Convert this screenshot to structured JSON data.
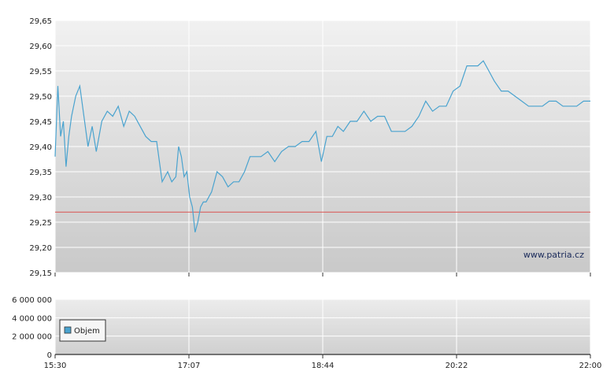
{
  "chart_data": [
    {
      "type": "line",
      "title": "",
      "xlabel": "",
      "ylabel": "",
      "watermark": "www.patria.cz",
      "x_tick_labels": [
        "15:30",
        "17:07",
        "18:44",
        "20:22",
        "22:00"
      ],
      "y_tick_labels": [
        "29,65",
        "29,60",
        "29,55",
        "29,50",
        "29,45",
        "29,40",
        "29,35",
        "29,30",
        "29,25",
        "29,20",
        "29,15"
      ],
      "ylim": [
        29.15,
        29.65
      ],
      "xlim": [
        "15:30",
        "22:00"
      ],
      "reference_line": {
        "value": 29.27,
        "color": "#d9534f"
      },
      "grid": true,
      "colors": {
        "line": "#4aa3cf",
        "plot_bg_top": "#f0f0f0",
        "plot_bg_bottom": "#c8c8c8",
        "grid": "#ffffff"
      },
      "series": [
        {
          "x": [
            "15:30",
            "15:32",
            "15:34",
            "15:36",
            "15:38",
            "15:40",
            "15:42",
            "15:45",
            "15:48",
            "15:51",
            "15:54",
            "15:57",
            "16:00",
            "16:04",
            "16:08",
            "16:12",
            "16:16",
            "16:20",
            "16:24",
            "16:28",
            "16:32",
            "16:36",
            "16:40",
            "16:44",
            "16:48",
            "16:52",
            "16:55",
            "16:58",
            "17:00",
            "17:02",
            "17:04",
            "17:06",
            "17:08",
            "17:10",
            "17:12",
            "17:14",
            "17:16",
            "17:18",
            "17:20",
            "17:24",
            "17:28",
            "17:32",
            "17:36",
            "17:40",
            "17:44",
            "17:48",
            "17:52",
            "17:56",
            "18:00",
            "18:05",
            "18:10",
            "18:15",
            "18:20",
            "18:25",
            "18:30",
            "18:35",
            "18:40",
            "18:44",
            "18:48",
            "18:52",
            "18:56",
            "19:00",
            "19:05",
            "19:10",
            "19:15",
            "19:20",
            "19:25",
            "19:30",
            "19:35",
            "19:40",
            "19:45",
            "19:50",
            "19:55",
            "20:00",
            "20:05",
            "20:10",
            "20:15",
            "20:20",
            "20:25",
            "20:30",
            "20:34",
            "20:38",
            "20:42",
            "20:46",
            "20:50",
            "20:55",
            "21:00",
            "21:05",
            "21:10",
            "21:15",
            "21:20",
            "21:25",
            "21:30",
            "21:35",
            "21:40",
            "21:45",
            "21:50",
            "21:55",
            "22:00"
          ],
          "values": [
            29.38,
            29.52,
            29.42,
            29.45,
            29.36,
            29.42,
            29.46,
            29.5,
            29.52,
            29.46,
            29.4,
            29.44,
            29.39,
            29.45,
            29.47,
            29.46,
            29.48,
            29.44,
            29.47,
            29.46,
            29.44,
            29.42,
            29.41,
            29.41,
            29.33,
            29.35,
            29.33,
            29.34,
            29.4,
            29.38,
            29.34,
            29.35,
            29.3,
            29.28,
            29.23,
            29.25,
            29.28,
            29.29,
            29.29,
            29.31,
            29.35,
            29.34,
            29.32,
            29.33,
            29.33,
            29.35,
            29.38,
            29.38,
            29.38,
            29.39,
            29.37,
            29.39,
            29.4,
            29.4,
            29.41,
            29.41,
            29.43,
            29.37,
            29.42,
            29.42,
            29.44,
            29.43,
            29.45,
            29.45,
            29.47,
            29.45,
            29.46,
            29.46,
            29.43,
            29.43,
            29.43,
            29.44,
            29.46,
            29.49,
            29.47,
            29.48,
            29.48,
            29.51,
            29.52,
            29.56,
            29.56,
            29.56,
            29.57,
            29.55,
            29.53,
            29.51,
            29.51,
            29.5,
            29.49,
            29.48,
            29.48,
            29.48,
            29.49,
            29.49,
            29.48,
            29.48,
            29.48,
            29.49,
            29.49
          ]
        }
      ]
    },
    {
      "type": "bar",
      "title": "",
      "x_tick_labels": [
        "15:30",
        "17:07",
        "18:44",
        "20:22",
        "22:00"
      ],
      "y_tick_labels": [
        "6 000 000",
        "4 000 000",
        "2 000 000",
        "0"
      ],
      "ylim": [
        0,
        6000000
      ],
      "grid": true,
      "legend": {
        "placement": "bottom-left",
        "label": "Objem",
        "color": "#4aa3cf"
      },
      "series": [
        {
          "name": "Objem",
          "values": []
        }
      ]
    }
  ]
}
